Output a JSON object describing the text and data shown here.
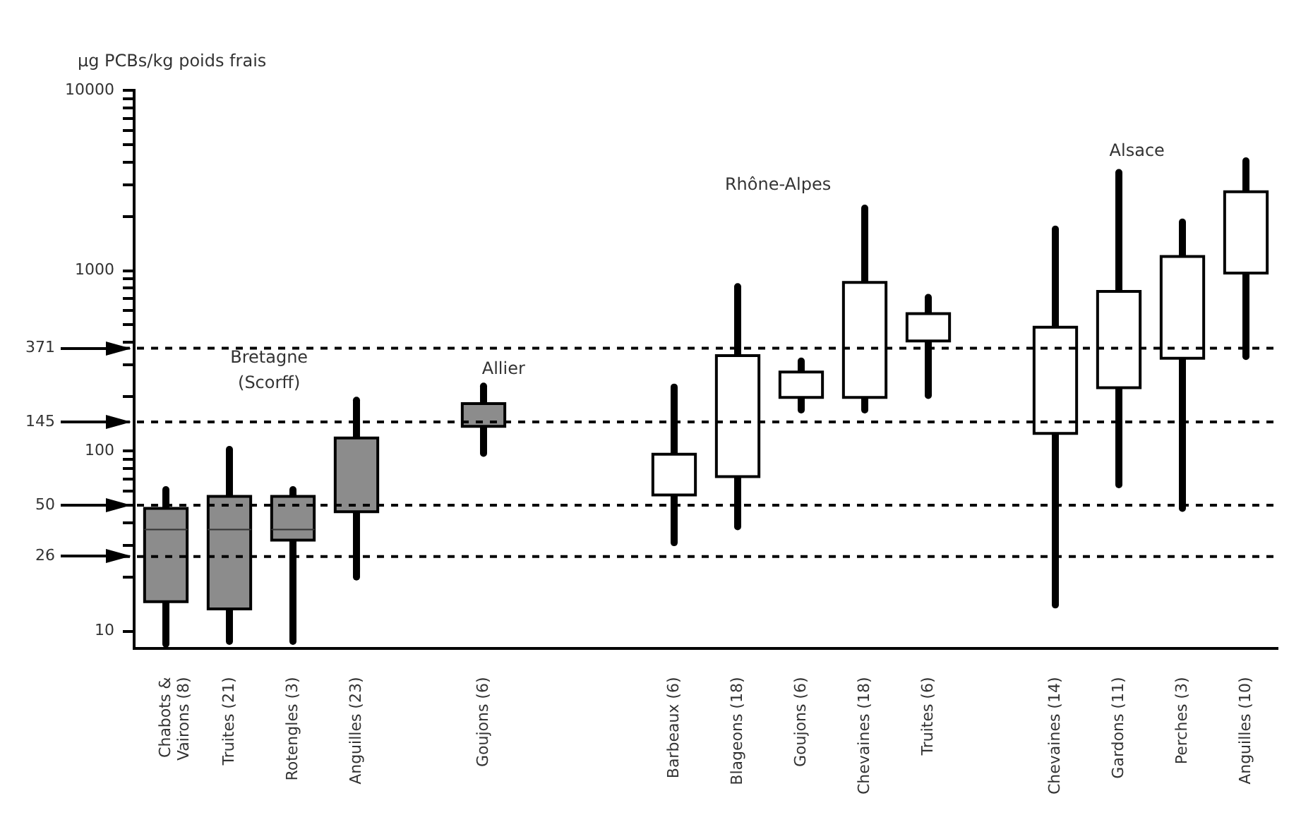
{
  "chart_data": {
    "type": "box",
    "ylabel": "µg PCBs/kg poids frais",
    "categories": [
      "Chabots & Vairons (8)",
      "Truites (21)",
      "Rotengles (3)",
      "Anguilles (23)",
      null,
      "Goujons (6)",
      null,
      null,
      "Barbeaux (6)",
      "Blageons (18)",
      "Goujons (6)",
      "Chevaines (18)",
      "Truites (6)",
      null,
      "Chevaines (14)",
      "Gardons (11)",
      "Perches (3)",
      "Anguilles (10)"
    ],
    "boxes": [
      {
        "low": 8.5,
        "q1": 14.6,
        "median": 36.7,
        "q3": 48,
        "high": 61
      },
      {
        "low": 8.8,
        "q1": 13.3,
        "median": 36.7,
        "q3": 56,
        "high": 102
      },
      {
        "low": 8.8,
        "q1": 32,
        "median": 36.7,
        "q3": 56,
        "high": 61
      },
      {
        "low": 20,
        "q1": 46,
        "median": null,
        "q3": 118,
        "high": 191
      },
      null,
      {
        "low": 97,
        "q1": 137,
        "median": null,
        "q3": 183,
        "high": 229
      },
      null,
      null,
      {
        "low": 31,
        "q1": 57,
        "median": null,
        "q3": 96,
        "high": 226
      },
      {
        "low": 38,
        "q1": 72,
        "median": null,
        "q3": 338,
        "high": 815
      },
      {
        "low": 169,
        "q1": 198,
        "median": null,
        "q3": 274,
        "high": 315
      },
      {
        "low": 169,
        "q1": 198,
        "median": null,
        "q3": 861,
        "high": 2220
      },
      {
        "low": 203,
        "q1": 407,
        "median": null,
        "q3": 578,
        "high": 710
      },
      null,
      {
        "low": 14,
        "q1": 125,
        "median": null,
        "q3": 486,
        "high": 1700
      },
      {
        "low": 65,
        "q1": 224,
        "median": null,
        "q3": 767,
        "high": 3500
      },
      {
        "low": 48,
        "q1": 327,
        "median": null,
        "q3": 1197,
        "high": 1860
      },
      {
        "low": 334,
        "q1": 970,
        "median": null,
        "q3": 2740,
        "high": 4060
      }
    ],
    "colors": [
      "#8c8c8c",
      "#8c8c8c",
      "#8c8c8c",
      "#8c8c8c",
      null,
      "#8c8c8c",
      null,
      null,
      "#ffffff",
      "#ffffff",
      "#ffffff",
      "#ffffff",
      "#ffffff",
      null,
      "#ffffff",
      "#ffffff",
      "#ffffff",
      "#ffffff"
    ],
    "log": true,
    "ylim": [
      8,
      10000
    ],
    "yticks": [
      10,
      {
        "value": 20,
        "label": null
      },
      {
        "value": 30,
        "label": null
      },
      {
        "value": 40,
        "label": null
      },
      {
        "value": 50,
        "label": null
      },
      {
        "value": 60,
        "label": null
      },
      {
        "value": 70,
        "label": null
      },
      {
        "value": 80,
        "label": null
      },
      {
        "value": 90,
        "label": null
      },
      100,
      {
        "value": 200,
        "label": null
      },
      {
        "value": 300,
        "label": null
      },
      {
        "value": 400,
        "label": null
      },
      {
        "value": 500,
        "label": null
      },
      {
        "value": 600,
        "label": null
      },
      {
        "value": 700,
        "label": null
      },
      {
        "value": 800,
        "label": null
      },
      {
        "value": 900,
        "label": null
      },
      1000,
      {
        "value": 2000,
        "label": null
      },
      {
        "value": 3000,
        "label": null
      },
      {
        "value": 4000,
        "label": null
      },
      {
        "value": 5000,
        "label": null
      },
      {
        "value": 6000,
        "label": null
      },
      {
        "value": 7000,
        "label": null
      },
      {
        "value": 8000,
        "label": null
      },
      {
        "value": 9000,
        "label": null
      },
      10000
    ],
    "ref_lines": [
      {
        "axis": "y",
        "value": 371,
        "label": "371",
        "line_style": "dashed"
      },
      {
        "axis": "y",
        "value": 145,
        "label": "145",
        "line_style": "dashed"
      },
      {
        "axis": "y",
        "value": 50,
        "label": "50",
        "line_style": "dashed"
      },
      {
        "axis": "y",
        "value": 26,
        "label": "26",
        "line_style": "dashed"
      }
    ],
    "annotations": [
      "Bretagne (Scorff)",
      "Allier",
      "Rhône-Alpes",
      "Alsace"
    ],
    "grid": false,
    "legend": false
  }
}
